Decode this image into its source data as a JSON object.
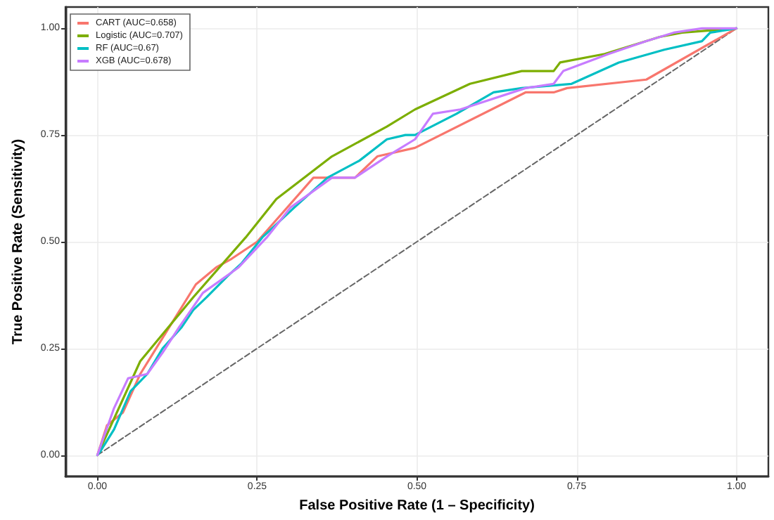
{
  "chart_data": {
    "type": "line",
    "xlabel": "False Positive Rate (1 – Specificity)",
    "ylabel": "True Positive Rate (Sensitivity)",
    "xlim": [
      -0.05,
      1.05
    ],
    "ylim": [
      -0.05,
      1.05
    ],
    "xticks": [
      {
        "value": 0,
        "label": "0.00"
      },
      {
        "value": 0.25,
        "label": "0.25"
      },
      {
        "value": 0.5,
        "label": "0.50"
      },
      {
        "value": 0.75,
        "label": "0.75"
      },
      {
        "value": 1,
        "label": "1.00"
      }
    ],
    "yticks": [
      {
        "value": 0,
        "label": "0.00"
      },
      {
        "value": 0.25,
        "label": "0.25"
      },
      {
        "value": 0.5,
        "label": "0.50"
      },
      {
        "value": 0.75,
        "label": "0.75"
      },
      {
        "value": 1,
        "label": "1.00"
      }
    ],
    "grid": true,
    "legend": "top left",
    "marker": "none",
    "series": [
      {
        "name": "CART (AUC=0.658)",
        "color": "#f8766d",
        "x": [
          0,
          0.015,
          0.04,
          0.067,
          0.154,
          0.186,
          0.21,
          0.25,
          0.338,
          0.403,
          0.438,
          0.497,
          0.67,
          0.714,
          0.735,
          0.859,
          1
        ],
        "values": [
          0,
          0.07,
          0.1,
          0.19,
          0.4,
          0.44,
          0.46,
          0.5,
          0.65,
          0.65,
          0.7,
          0.72,
          0.85,
          0.85,
          0.86,
          0.88,
          1
        ]
      },
      {
        "name": "Logistic (AUC=0.707)",
        "color": "#7cae00",
        "x": [
          0,
          0.067,
          0.15,
          0.232,
          0.28,
          0.367,
          0.453,
          0.497,
          0.583,
          0.664,
          0.714,
          0.724,
          0.794,
          0.88,
          0.915,
          1
        ],
        "values": [
          0,
          0.22,
          0.37,
          0.51,
          0.6,
          0.7,
          0.77,
          0.81,
          0.87,
          0.9,
          0.9,
          0.92,
          0.94,
          0.98,
          0.99,
          1
        ]
      },
      {
        "name": "RF (AUC=0.67)",
        "color": "#00bfc4",
        "x": [
          0,
          0.005,
          0.026,
          0.052,
          0.078,
          0.102,
          0.132,
          0.15,
          0.171,
          0.204,
          0.226,
          0.258,
          0.308,
          0.36,
          0.41,
          0.453,
          0.482,
          0.497,
          0.562,
          0.62,
          0.664,
          0.742,
          0.816,
          0.887,
          0.946,
          0.959,
          1
        ],
        "values": [
          0,
          0.01,
          0.06,
          0.15,
          0.19,
          0.25,
          0.3,
          0.34,
          0.37,
          0.42,
          0.45,
          0.51,
          0.58,
          0.65,
          0.69,
          0.74,
          0.75,
          0.75,
          0.8,
          0.85,
          0.86,
          0.87,
          0.92,
          0.95,
          0.97,
          0.99,
          1
        ]
      },
      {
        "name": "XGB (AUC=0.678)",
        "color": "#c77cff",
        "x": [
          0,
          0.026,
          0.048,
          0.078,
          0.102,
          0.128,
          0.165,
          0.221,
          0.265,
          0.302,
          0.367,
          0.403,
          0.453,
          0.497,
          0.525,
          0.568,
          0.67,
          0.714,
          0.729,
          0.8,
          0.859,
          0.902,
          0.946,
          1
        ],
        "values": [
          0,
          0.11,
          0.18,
          0.19,
          0.24,
          0.3,
          0.38,
          0.44,
          0.51,
          0.58,
          0.65,
          0.65,
          0.7,
          0.74,
          0.8,
          0.81,
          0.86,
          0.87,
          0.9,
          0.94,
          0.97,
          0.99,
          1,
          1
        ]
      },
      {
        "color": "#666666",
        "line_style": "dashed",
        "x": [
          0,
          1
        ],
        "values": [
          0,
          1
        ]
      }
    ]
  }
}
